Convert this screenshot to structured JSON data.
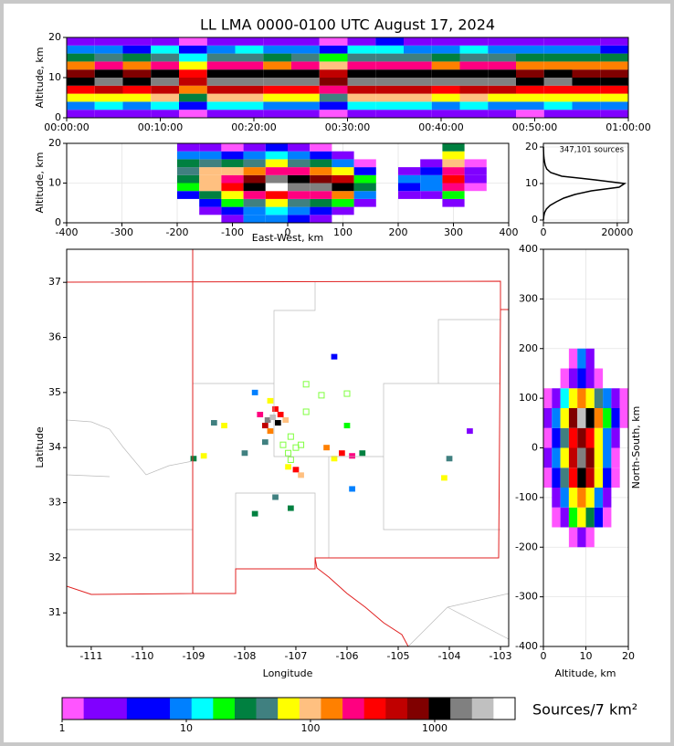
{
  "chart_data": [
    {
      "type": "heatmap",
      "title": "LL LMA 0000-0100 UTC August 17, 2024",
      "ylabel": "Altitude, km",
      "xlim": [
        0,
        60
      ],
      "ylim": [
        0,
        20
      ],
      "xticks": [
        {
          "value": 0,
          "label": "00:00:00"
        },
        {
          "value": 10,
          "label": "00:10:00"
        },
        {
          "value": 20,
          "label": "00:20:00"
        },
        {
          "value": 30,
          "label": "00:30:00"
        },
        {
          "value": 40,
          "label": "00:40:00"
        },
        {
          "value": 50,
          "label": "00:50:00"
        },
        {
          "value": 60,
          "label": "01:00:00"
        }
      ],
      "yticks": [
        0,
        10,
        20
      ],
      "grid": false,
      "x": [
        1.5,
        4.5,
        7.5,
        10.5,
        13.5,
        16.5,
        19.5,
        22.5,
        25.5,
        28.5,
        31.5,
        34.5,
        37.5,
        40.5,
        43.5,
        46.5,
        49.5,
        52.5,
        55.5,
        58.5
      ],
      "y": [
        1,
        3,
        5,
        7,
        9,
        11,
        13,
        15,
        17,
        19
      ],
      "values": [
        [
          2,
          3,
          2,
          3,
          1,
          2,
          3,
          2,
          3,
          1,
          2,
          3,
          2,
          2,
          3,
          2,
          1,
          2,
          3,
          2
        ],
        [
          10,
          12,
          8,
          15,
          5,
          12,
          14,
          10,
          11,
          6,
          13,
          15,
          12,
          10,
          14,
          11,
          9,
          12,
          10,
          8
        ],
        [
          60,
          80,
          55,
          90,
          30,
          85,
          95,
          70,
          75,
          40,
          90,
          100,
          85,
          70,
          95,
          80,
          60,
          75,
          70,
          55
        ],
        [
          350,
          420,
          300,
          480,
          150,
          450,
          500,
          380,
          400,
          200,
          480,
          520,
          450,
          380,
          500,
          420,
          320,
          400,
          380,
          300
        ],
        [
          1200,
          1500,
          1100,
          1700,
          500,
          1600,
          1800,
          1400,
          1500,
          700,
          1700,
          1900,
          1600,
          1400,
          1800,
          1500,
          1200,
          1400,
          1300,
          1100
        ],
        [
          800,
          950,
          700,
          1100,
          350,
          1000,
          1150,
          900,
          950,
          450,
          1100,
          1200,
          1000,
          900,
          1150,
          950,
          800,
          900,
          850,
          700
        ],
        [
          150,
          200,
          140,
          220,
          70,
          210,
          230,
          180,
          190,
          90,
          220,
          240,
          200,
          180,
          230,
          190,
          150,
          180,
          170,
          140
        ],
        [
          30,
          40,
          25,
          45,
          15,
          40,
          45,
          35,
          38,
          18,
          45,
          50,
          40,
          35,
          45,
          38,
          30,
          35,
          32,
          28
        ],
        [
          8,
          10,
          6,
          12,
          4,
          10,
          12,
          9,
          10,
          5,
          12,
          13,
          10,
          9,
          12,
          10,
          8,
          9,
          8,
          7
        ],
        [
          2,
          3,
          2,
          3,
          1,
          3,
          3,
          2,
          3,
          1,
          3,
          4,
          3,
          2,
          3,
          3,
          2,
          2,
          2,
          2
        ]
      ]
    },
    {
      "type": "heatmap",
      "xlabel": "East-West, km",
      "ylabel": "Altitude, km",
      "xlim": [
        -400,
        400
      ],
      "ylim": [
        0,
        20
      ],
      "xticks": [
        -400,
        -300,
        -200,
        -100,
        0,
        100,
        200,
        300,
        400
      ],
      "yticks": [
        0,
        10,
        20
      ],
      "grid": true,
      "x": [
        -180,
        -140,
        -100,
        -60,
        -20,
        20,
        60,
        100,
        140,
        180,
        220,
        260,
        300,
        340
      ],
      "y": [
        1,
        3,
        5,
        7,
        9,
        11,
        13,
        15,
        17,
        19
      ],
      "values": [
        [
          0,
          0,
          3,
          8,
          10,
          5,
          2,
          0,
          0,
          0,
          0,
          0,
          0,
          0
        ],
        [
          0,
          2,
          5,
          10,
          15,
          8,
          5,
          3,
          0,
          0,
          0,
          0,
          0,
          0
        ],
        [
          0,
          5,
          20,
          40,
          60,
          40,
          30,
          20,
          2,
          0,
          0,
          0,
          3,
          0
        ],
        [
          5,
          30,
          80,
          200,
          400,
          250,
          200,
          150,
          10,
          0,
          2,
          3,
          20,
          0
        ],
        [
          20,
          100,
          300,
          1200,
          3000,
          1500,
          1600,
          900,
          30,
          0,
          5,
          8,
          200,
          1
        ],
        [
          30,
          120,
          250,
          800,
          1500,
          900,
          800,
          600,
          20,
          0,
          8,
          10,
          300,
          2
        ],
        [
          40,
          90,
          100,
          150,
          250,
          200,
          150,
          80,
          5,
          0,
          3,
          5,
          250,
          2
        ],
        [
          30,
          50,
          30,
          40,
          60,
          50,
          30,
          10,
          1,
          0,
          0,
          2,
          120,
          1
        ],
        [
          10,
          10,
          5,
          10,
          15,
          10,
          5,
          2,
          0,
          0,
          0,
          0,
          60,
          0
        ],
        [
          3,
          2,
          1,
          3,
          5,
          3,
          1,
          0,
          0,
          0,
          0,
          0,
          30,
          0
        ]
      ]
    },
    {
      "type": "profile",
      "annotation": "347,101 sources",
      "color": "#000000",
      "xlim": [
        0,
        23000
      ],
      "ylim": [
        -0.75,
        21
      ],
      "xticks": [
        0,
        20000
      ],
      "yticks": [
        0,
        10,
        20
      ],
      "grid": true,
      "y": [
        0,
        1,
        2,
        3,
        4,
        5,
        6,
        7,
        8,
        9,
        10,
        11,
        12,
        13,
        14,
        15,
        16,
        17,
        18,
        19,
        20
      ],
      "values": [
        0,
        100,
        300,
        800,
        1800,
        3500,
        5500,
        8500,
        13000,
        20500,
        22000,
        14000,
        5000,
        2000,
        900,
        500,
        300,
        150,
        80,
        40,
        20
      ]
    },
    {
      "type": "map",
      "xlabel": "Longitude",
      "ylabel": "Latitude",
      "xlim": [
        -111.48,
        -102.84
      ],
      "ylim": [
        30.39,
        37.6
      ],
      "xticks": [
        -111,
        -110,
        -109,
        -108,
        -107,
        -106,
        -105,
        -104,
        -103
      ],
      "yticks": [
        31,
        32,
        33,
        34,
        35,
        36,
        37
      ],
      "grid": false,
      "lon": [
        -107.55,
        -107.45,
        -107.35,
        -107.6,
        -107.4,
        -107.3,
        -107.7,
        -107.5,
        -107.2,
        -107.5,
        -108.4,
        -108.6,
        -108.8,
        -109.0,
        -108.0,
        -107.6,
        -107.0,
        -106.9,
        -107.15,
        -106.4,
        -106.1,
        -105.9,
        -106.25,
        -105.7,
        -104.0,
        -104.1,
        -107.4,
        -107.1,
        -107.8,
        -106.0,
        -106.25,
        -103.6,
        -105.9,
        -107.8
      ],
      "lat": [
        34.5,
        34.55,
        34.45,
        34.4,
        34.7,
        34.6,
        34.6,
        34.85,
        34.5,
        34.3,
        34.4,
        34.45,
        33.85,
        33.8,
        33.9,
        34.1,
        33.6,
        33.5,
        33.65,
        34.0,
        33.9,
        33.85,
        33.8,
        33.9,
        33.8,
        33.45,
        33.1,
        32.9,
        32.8,
        34.4,
        35.65,
        34.3,
        33.25,
        35.0
      ],
      "values": [
        1500,
        2500,
        1200,
        600,
        400,
        300,
        200,
        80,
        100,
        150,
        80,
        40,
        60,
        30,
        50,
        40,
        300,
        100,
        60,
        150,
        400,
        200,
        80,
        30,
        40,
        60,
        50,
        30,
        25,
        20,
        5,
        3,
        8,
        10
      ],
      "stations": {
        "color": "#80ff40",
        "lon": [
          -106.8,
          -106.5,
          -106.0,
          -106.8,
          -107.1,
          -107.0,
          -106.9,
          -107.15,
          -107.25,
          -107.1
        ],
        "lat": [
          35.15,
          34.95,
          34.98,
          34.65,
          34.2,
          34.0,
          34.05,
          33.9,
          34.05,
          33.78
        ]
      }
    },
    {
      "type": "heatmap",
      "xlabel": "Altitude, km",
      "ylabel": "North-South, km",
      "xlim": [
        0,
        20
      ],
      "ylim": [
        -400,
        400
      ],
      "xticks": [
        0,
        10,
        20
      ],
      "yticks": [
        -400,
        -300,
        -200,
        -100,
        0,
        100,
        200,
        300,
        400
      ],
      "grid": true,
      "x": [
        1,
        3,
        5,
        7,
        9,
        11,
        13,
        15,
        17,
        19
      ],
      "y": [
        -180,
        -140,
        -100,
        -60,
        -20,
        20,
        60,
        100,
        140,
        180
      ],
      "values": [
        [
          0,
          0,
          0,
          1,
          2,
          1,
          0,
          0,
          0,
          0
        ],
        [
          0,
          1,
          3,
          20,
          60,
          30,
          5,
          1,
          0,
          0
        ],
        [
          0,
          2,
          10,
          60,
          150,
          80,
          10,
          2,
          0,
          0
        ],
        [
          1,
          5,
          40,
          300,
          1200,
          600,
          60,
          5,
          1,
          0
        ],
        [
          2,
          8,
          60,
          500,
          1500,
          800,
          80,
          8,
          1,
          0
        ],
        [
          1,
          5,
          40,
          300,
          800,
          400,
          60,
          10,
          2,
          0
        ],
        [
          2,
          10,
          80,
          800,
          2500,
          1200,
          150,
          20,
          5,
          1
        ],
        [
          1,
          3,
          15,
          60,
          150,
          80,
          40,
          10,
          3,
          1
        ],
        [
          0,
          0,
          1,
          3,
          5,
          3,
          1,
          0,
          0,
          0
        ],
        [
          0,
          0,
          0,
          1,
          8,
          3,
          0,
          0,
          0,
          0
        ]
      ]
    },
    {
      "type": "colorbar",
      "label": "Sources/7 km²",
      "log": true,
      "lim": [
        1,
        4440
      ],
      "ticks": [
        1,
        10,
        100,
        1000
      ],
      "colors": [
        "#ff55ff",
        "#8000ff",
        "#8000ff",
        "#0000ff",
        "#0000ff",
        "#0080ff",
        "#00ffff",
        "#00ff00",
        "#008040",
        "#408080",
        "#ffff00",
        "#ffc080",
        "#ff8000",
        "#ff0080",
        "#ff0000",
        "#c00000",
        "#800000",
        "#000000",
        "#808080",
        "#c0c0c0",
        "#ffffff"
      ]
    }
  ]
}
